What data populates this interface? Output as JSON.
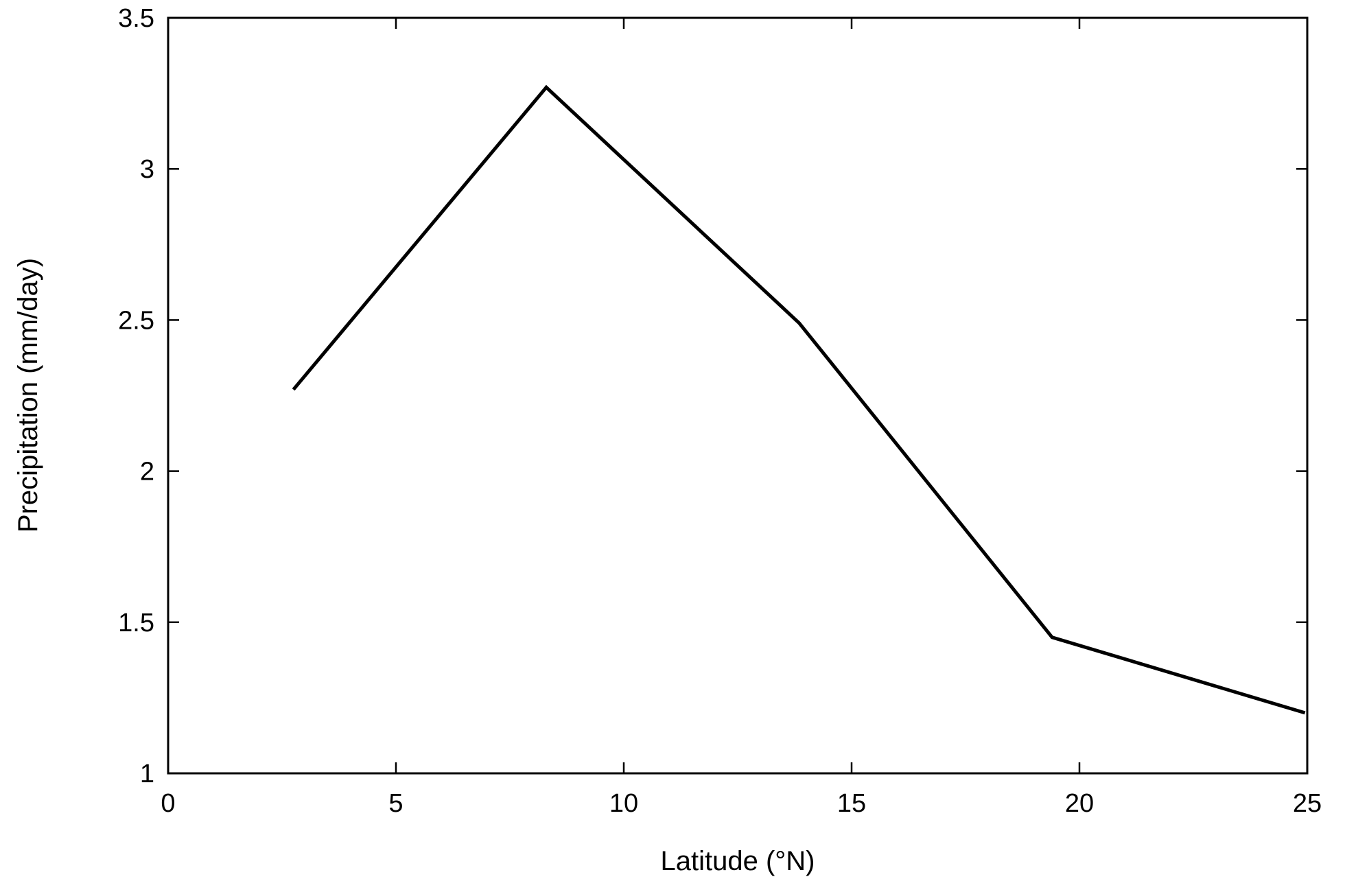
{
  "chart_data": {
    "type": "line",
    "xlabel": "Latitude (°N)",
    "ylabel": "Precipitation (mm/day)",
    "xlim": [
      0,
      25
    ],
    "ylim": [
      1,
      3.5
    ],
    "xticks": [
      0,
      5,
      10,
      15,
      20,
      25
    ],
    "xtick_labels": [
      "0",
      "5",
      "10",
      "15",
      "20",
      "25"
    ],
    "yticks": [
      1,
      1.5,
      2,
      2.5,
      3,
      3.5
    ],
    "ytick_labels": [
      "1",
      "1.5",
      "2",
      "2.5",
      "3",
      "3.5"
    ],
    "grid": false,
    "series": [
      {
        "color": "#000000",
        "x": [
          2.75,
          8.3,
          13.85,
          19.4,
          24.95
        ],
        "y": [
          2.27,
          3.27,
          2.49,
          1.45,
          1.2
        ]
      }
    ]
  }
}
